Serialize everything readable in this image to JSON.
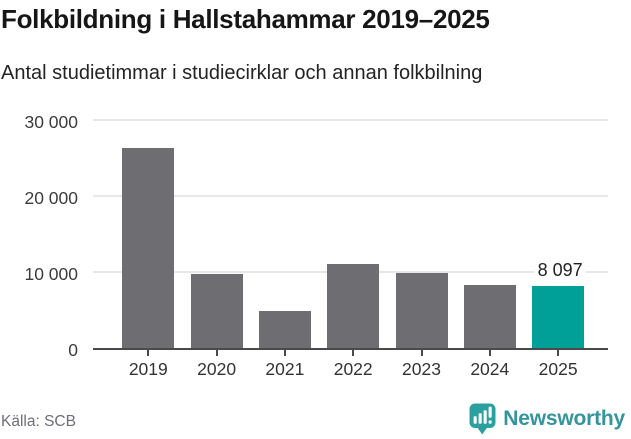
{
  "header": {
    "title": "Folkbildning i Hallstahammar 2019–2025",
    "subtitle": "Antal studietimmar i studiecirklar och annan folkbilning"
  },
  "chart_data": {
    "type": "bar",
    "categories": [
      "2019",
      "2020",
      "2021",
      "2022",
      "2023",
      "2024",
      "2025"
    ],
    "values": [
      26300,
      9800,
      4900,
      11000,
      9900,
      8300,
      8097
    ],
    "highlight": {
      "index": 6,
      "label": "8 097"
    },
    "yticks": [
      0,
      10000,
      20000,
      30000
    ],
    "ytick_labels": [
      "0",
      "10 000",
      "20 000",
      "30 000"
    ],
    "ylim": [
      0,
      30000
    ],
    "grid": true,
    "legend": "none",
    "bar_color": "#6d6d72",
    "highlight_color": "#00a099",
    "title": "Folkbildning i Hallstahammar 2019–2025",
    "xlabel": "",
    "ylabel": ""
  },
  "footer": {
    "source": "Källa: SCB",
    "brand": "Newsworthy"
  },
  "colors": {
    "bar": "#6d6d72",
    "highlight": "#00a099",
    "gridline": "#e7e7e7",
    "axis": "#4a4a4a",
    "brand_teal": "#2aa0a0",
    "brand_text": "#35949c"
  }
}
